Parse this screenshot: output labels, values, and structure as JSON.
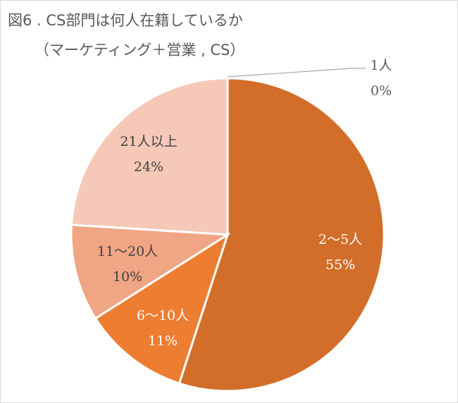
{
  "chart_data": {
    "type": "pie",
    "title_line1": "図6 . CS部門は何人在籍しているか",
    "title_line2": "（マーケティング＋営業 , CS）",
    "slices": [
      {
        "label": "1人",
        "value": 0,
        "pct": "0%",
        "color": "#d9d9d9",
        "labelColor": "#595959"
      },
      {
        "label": "2～5人",
        "value": 55,
        "pct": "55%",
        "color": "#d26e2a",
        "labelColor": "#ffffff"
      },
      {
        "label": "6～10人",
        "value": 11,
        "pct": "11%",
        "color": "#ed7d31",
        "labelColor": "#ffffff"
      },
      {
        "label": "11～20人",
        "value": 10,
        "pct": "10%",
        "color": "#f0a585",
        "labelColor": "#404040"
      },
      {
        "label": "21人以上",
        "value": 24,
        "pct": "24%",
        "color": "#f5c8b8",
        "labelColor": "#404040"
      }
    ],
    "legend": "none",
    "start": "top, clockwise"
  }
}
